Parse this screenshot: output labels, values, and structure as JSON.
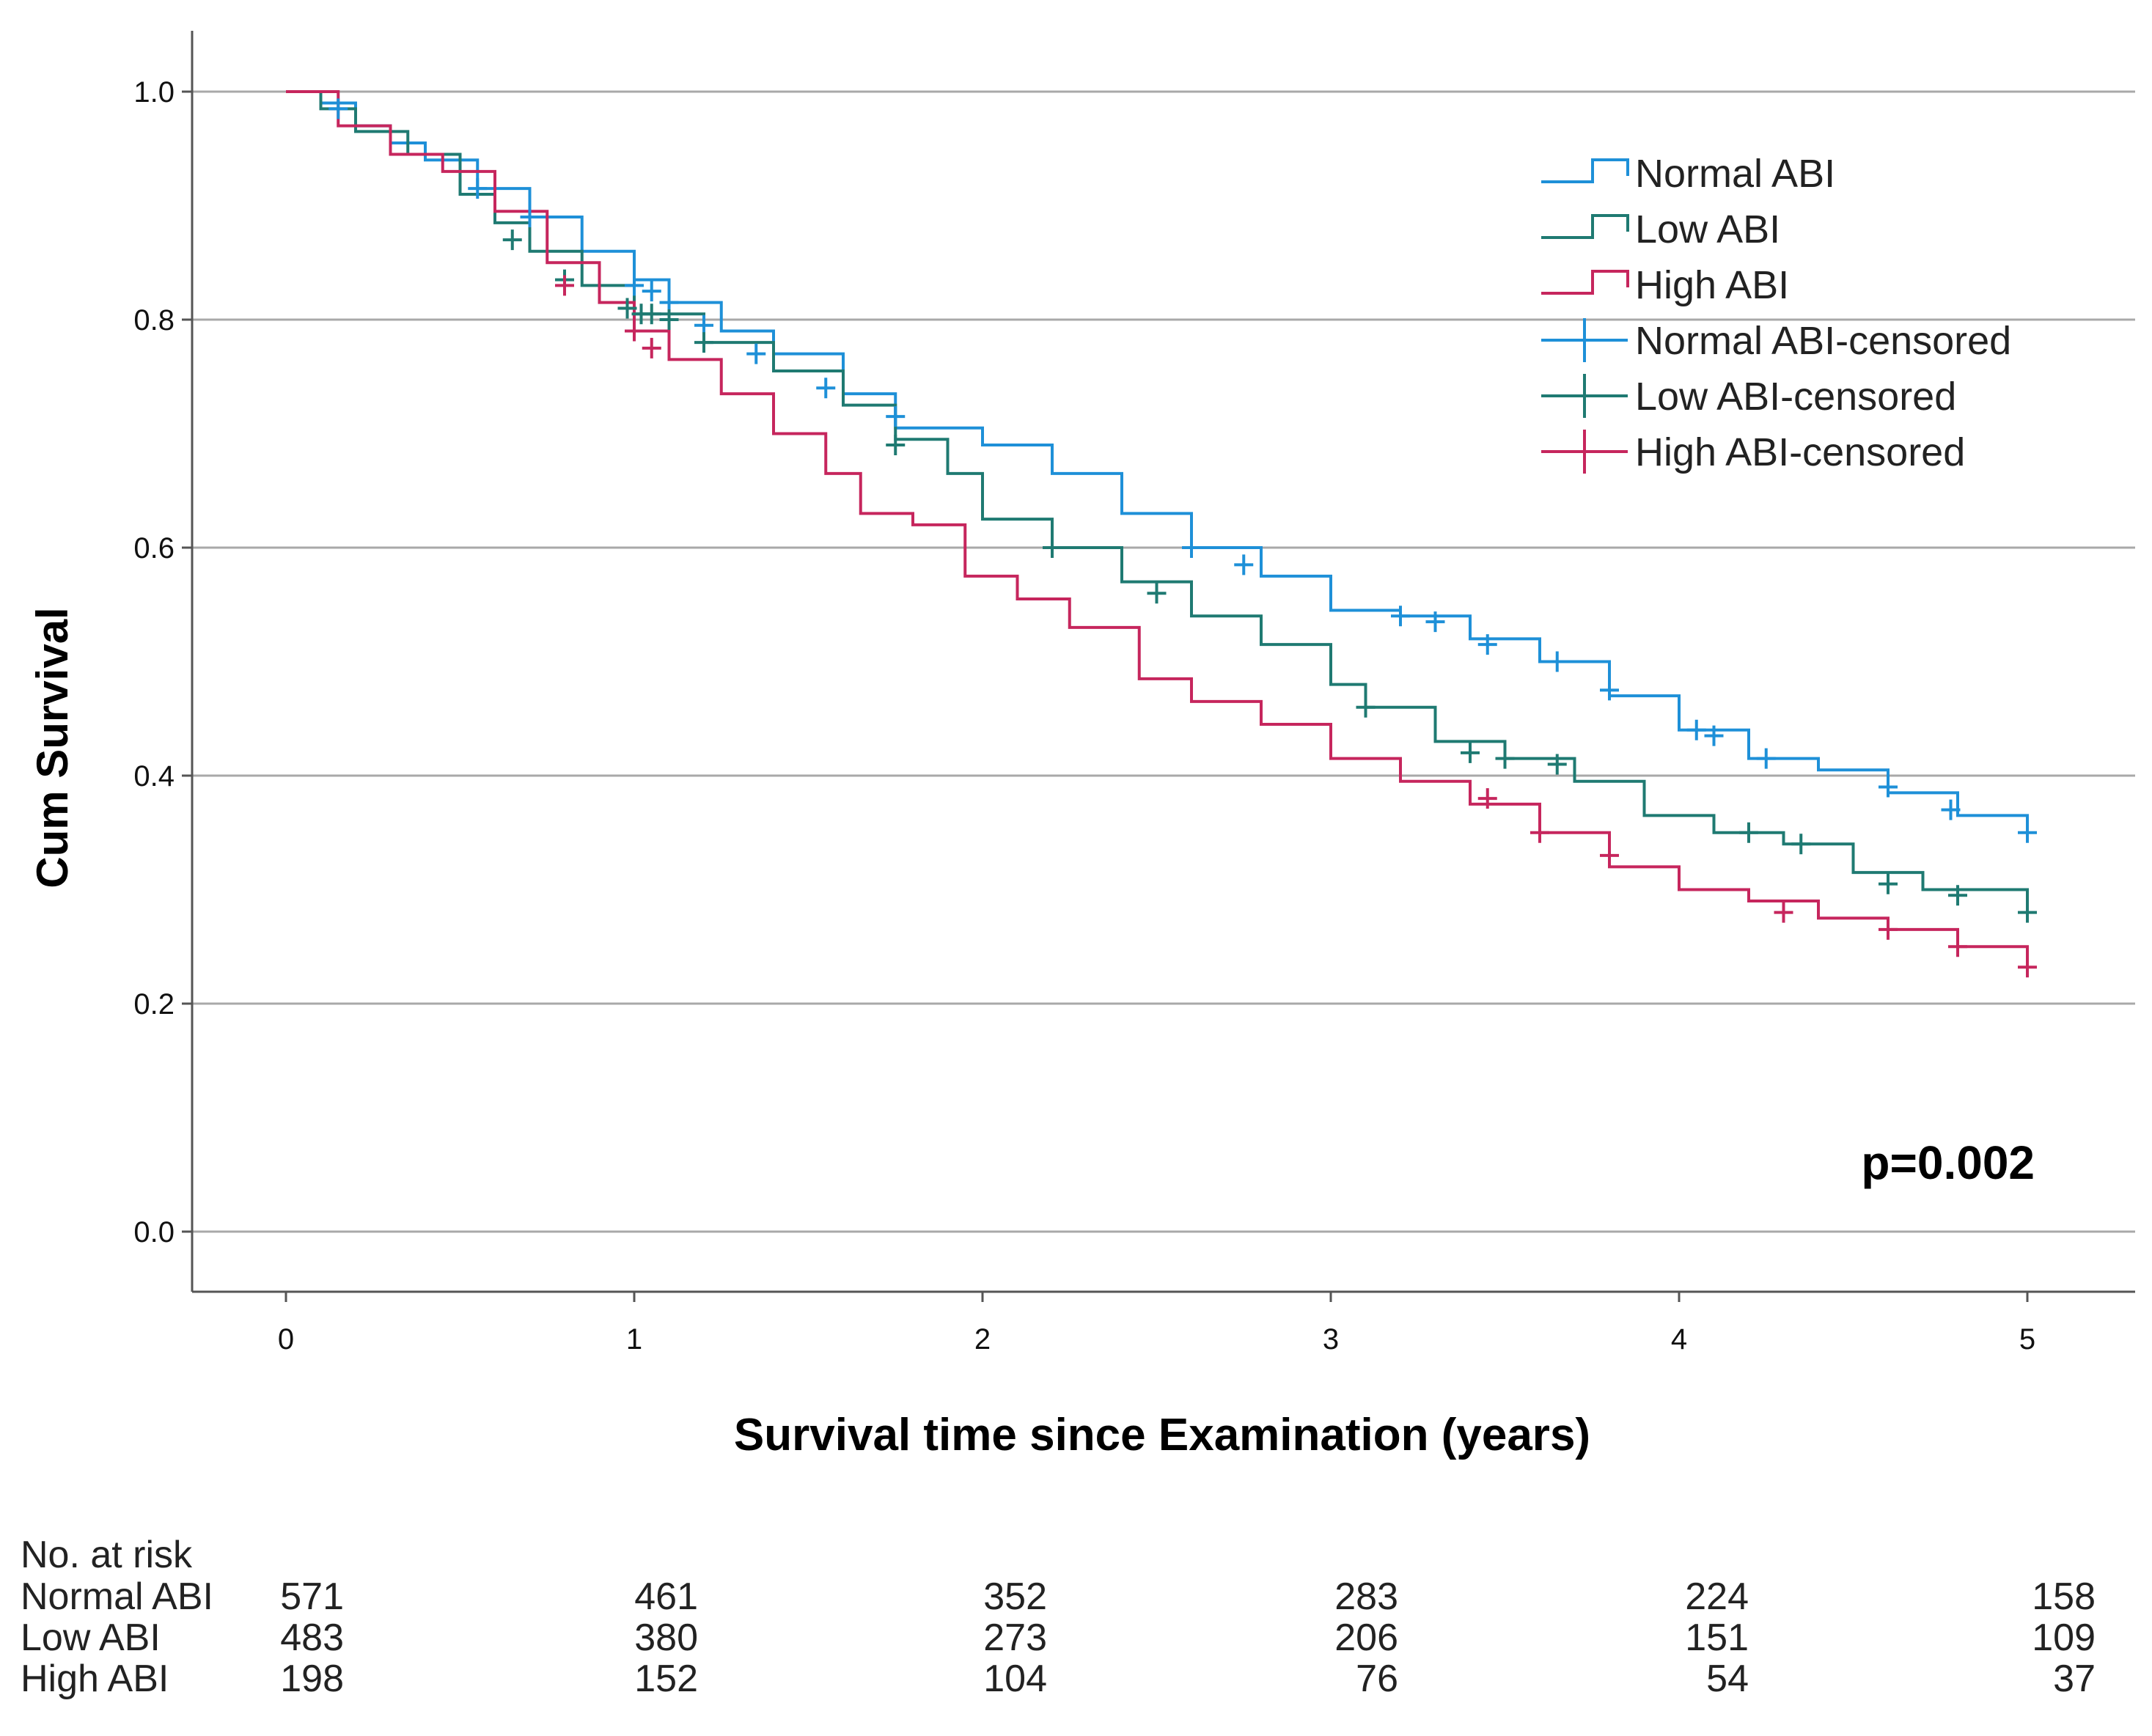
{
  "chart_data": {
    "type": "line",
    "subtype": "kaplan-meier",
    "title": "",
    "xlabel": "Survival time since Examination (years)",
    "ylabel": "Cum Survival",
    "xlim": [
      -0.27,
      5.27
    ],
    "ylim": [
      -0.05,
      1.05
    ],
    "xticks": [
      0,
      1,
      2,
      3,
      4,
      5
    ],
    "xtick_labels": [
      "0",
      "1",
      "2",
      "3",
      "4",
      "5"
    ],
    "yticks": [
      0.0,
      0.2,
      0.4,
      0.6,
      0.8,
      1.0
    ],
    "ytick_labels": [
      "0.0",
      "0.2",
      "0.4",
      "0.6",
      "0.8",
      "1.0"
    ],
    "grid": "horizontal",
    "annotation": "p=0.002",
    "legend_position": "top-right",
    "legend": [
      {
        "label": "Normal ABI",
        "kind": "line",
        "color": "#1e90d8"
      },
      {
        "label": "Low ABI",
        "kind": "line",
        "color": "#1f7a72"
      },
      {
        "label": "High ABI",
        "kind": "line",
        "color": "#c6265d"
      },
      {
        "label": "Normal ABI-censored",
        "kind": "censor",
        "color": "#1e90d8"
      },
      {
        "label": "Low ABI-censored",
        "kind": "censor",
        "color": "#1f7a72"
      },
      {
        "label": "High ABI-censored",
        "kind": "censor",
        "color": "#c6265d"
      }
    ],
    "series": [
      {
        "name": "Normal ABI",
        "color": "#1e90d8",
        "points": [
          [
            0,
            1.0
          ],
          [
            0.1,
            0.99
          ],
          [
            0.2,
            0.97
          ],
          [
            0.3,
            0.955
          ],
          [
            0.4,
            0.94
          ],
          [
            0.55,
            0.915
          ],
          [
            0.7,
            0.89
          ],
          [
            0.85,
            0.86
          ],
          [
            1.0,
            0.835
          ],
          [
            1.1,
            0.815
          ],
          [
            1.25,
            0.79
          ],
          [
            1.4,
            0.77
          ],
          [
            1.6,
            0.735
          ],
          [
            1.75,
            0.705
          ],
          [
            2.0,
            0.69
          ],
          [
            2.2,
            0.665
          ],
          [
            2.4,
            0.63
          ],
          [
            2.6,
            0.6
          ],
          [
            2.8,
            0.575
          ],
          [
            3.0,
            0.545
          ],
          [
            3.2,
            0.54
          ],
          [
            3.4,
            0.52
          ],
          [
            3.6,
            0.5
          ],
          [
            3.8,
            0.47
          ],
          [
            4.0,
            0.44
          ],
          [
            4.2,
            0.415
          ],
          [
            4.4,
            0.405
          ],
          [
            4.6,
            0.385
          ],
          [
            4.8,
            0.365
          ],
          [
            5.0,
            0.345
          ]
        ],
        "censored": [
          [
            0.15,
            0.985
          ],
          [
            0.55,
            0.915
          ],
          [
            0.7,
            0.89
          ],
          [
            1.0,
            0.83
          ],
          [
            1.05,
            0.825
          ],
          [
            1.1,
            0.815
          ],
          [
            1.2,
            0.795
          ],
          [
            1.35,
            0.77
          ],
          [
            1.55,
            0.74
          ],
          [
            1.75,
            0.715
          ],
          [
            2.6,
            0.6
          ],
          [
            2.75,
            0.585
          ],
          [
            3.2,
            0.54
          ],
          [
            3.3,
            0.535
          ],
          [
            3.45,
            0.515
          ],
          [
            3.65,
            0.5
          ],
          [
            3.8,
            0.475
          ],
          [
            4.05,
            0.44
          ],
          [
            4.1,
            0.435
          ],
          [
            4.25,
            0.415
          ],
          [
            4.6,
            0.39
          ],
          [
            4.78,
            0.37
          ],
          [
            5.0,
            0.35
          ]
        ]
      },
      {
        "name": "Low ABI",
        "color": "#1f7a72",
        "points": [
          [
            0,
            1.0
          ],
          [
            0.1,
            0.985
          ],
          [
            0.2,
            0.965
          ],
          [
            0.35,
            0.945
          ],
          [
            0.5,
            0.91
          ],
          [
            0.6,
            0.885
          ],
          [
            0.7,
            0.86
          ],
          [
            0.85,
            0.83
          ],
          [
            1.0,
            0.805
          ],
          [
            1.2,
            0.78
          ],
          [
            1.4,
            0.755
          ],
          [
            1.6,
            0.725
          ],
          [
            1.75,
            0.695
          ],
          [
            1.9,
            0.665
          ],
          [
            2.0,
            0.625
          ],
          [
            2.2,
            0.6
          ],
          [
            2.4,
            0.57
          ],
          [
            2.6,
            0.54
          ],
          [
            2.8,
            0.515
          ],
          [
            3.0,
            0.48
          ],
          [
            3.1,
            0.46
          ],
          [
            3.3,
            0.43
          ],
          [
            3.5,
            0.415
          ],
          [
            3.7,
            0.395
          ],
          [
            3.9,
            0.365
          ],
          [
            4.1,
            0.35
          ],
          [
            4.3,
            0.34
          ],
          [
            4.5,
            0.315
          ],
          [
            4.7,
            0.3
          ],
          [
            5.0,
            0.28
          ]
        ],
        "censored": [
          [
            0.65,
            0.87
          ],
          [
            0.8,
            0.835
          ],
          [
            0.98,
            0.81
          ],
          [
            1.02,
            0.805
          ],
          [
            1.05,
            0.805
          ],
          [
            1.1,
            0.8
          ],
          [
            1.2,
            0.78
          ],
          [
            1.75,
            0.69
          ],
          [
            2.2,
            0.6
          ],
          [
            2.5,
            0.56
          ],
          [
            3.1,
            0.46
          ],
          [
            3.4,
            0.42
          ],
          [
            3.5,
            0.415
          ],
          [
            3.65,
            0.41
          ],
          [
            4.2,
            0.35
          ],
          [
            4.35,
            0.34
          ],
          [
            4.6,
            0.305
          ],
          [
            4.8,
            0.295
          ],
          [
            5.0,
            0.28
          ]
        ]
      },
      {
        "name": "High ABI",
        "color": "#c6265d",
        "points": [
          [
            0,
            1.0
          ],
          [
            0.15,
            0.97
          ],
          [
            0.3,
            0.945
          ],
          [
            0.45,
            0.93
          ],
          [
            0.6,
            0.895
          ],
          [
            0.75,
            0.85
          ],
          [
            0.9,
            0.815
          ],
          [
            1.0,
            0.79
          ],
          [
            1.1,
            0.765
          ],
          [
            1.25,
            0.735
          ],
          [
            1.4,
            0.7
          ],
          [
            1.55,
            0.665
          ],
          [
            1.65,
            0.63
          ],
          [
            1.8,
            0.62
          ],
          [
            1.95,
            0.575
          ],
          [
            2.1,
            0.555
          ],
          [
            2.25,
            0.53
          ],
          [
            2.45,
            0.485
          ],
          [
            2.6,
            0.465
          ],
          [
            2.8,
            0.445
          ],
          [
            3.0,
            0.415
          ],
          [
            3.2,
            0.395
          ],
          [
            3.4,
            0.375
          ],
          [
            3.6,
            0.35
          ],
          [
            3.8,
            0.32
          ],
          [
            4.0,
            0.3
          ],
          [
            4.2,
            0.29
          ],
          [
            4.4,
            0.275
          ],
          [
            4.6,
            0.265
          ],
          [
            4.8,
            0.25
          ],
          [
            5.0,
            0.23
          ]
        ],
        "censored": [
          [
            0.8,
            0.83
          ],
          [
            1.0,
            0.79
          ],
          [
            1.05,
            0.775
          ],
          [
            3.45,
            0.38
          ],
          [
            3.6,
            0.35
          ],
          [
            3.8,
            0.33
          ],
          [
            4.3,
            0.28
          ],
          [
            4.6,
            0.265
          ],
          [
            4.8,
            0.25
          ],
          [
            5.0,
            0.232
          ]
        ]
      }
    ],
    "risk_table": {
      "title": "No. at risk",
      "rows": [
        {
          "label": "Normal ABI",
          "values": [
            "571",
            "461",
            "352",
            "283",
            "224",
            "158"
          ]
        },
        {
          "label": "Low ABI",
          "values": [
            "483",
            "380",
            "273",
            "206",
            "151",
            "109"
          ]
        },
        {
          "label": "High ABI",
          "values": [
            "198",
            "152",
            "104",
            "76",
            "54",
            "37"
          ]
        }
      ]
    }
  }
}
